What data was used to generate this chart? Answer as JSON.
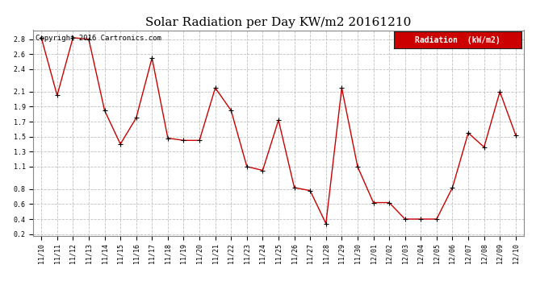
{
  "title": "Solar Radiation per Day KW/m2 20161210",
  "copyright_text": "Copyright 2016 Cartronics.com",
  "legend_label": "Radiation  (kW/m2)",
  "dates": [
    "11/10",
    "11/11",
    "11/12",
    "11/13",
    "11/14",
    "11/15",
    "11/16",
    "11/17",
    "11/18",
    "11/19",
    "11/20",
    "11/21",
    "11/22",
    "11/23",
    "11/24",
    "11/25",
    "11/26",
    "11/27",
    "11/28",
    "11/29",
    "11/30",
    "12/01",
    "12/02",
    "12/03",
    "12/04",
    "12/05",
    "12/06",
    "12/07",
    "12/08",
    "12/09",
    "12/10"
  ],
  "values": [
    2.82,
    2.05,
    2.82,
    2.8,
    1.85,
    1.4,
    1.75,
    2.55,
    1.48,
    1.45,
    1.45,
    2.15,
    1.85,
    1.1,
    1.05,
    1.72,
    0.82,
    0.78,
    0.34,
    2.15,
    1.1,
    0.62,
    0.62,
    0.4,
    0.4,
    0.4,
    0.82,
    1.55,
    1.36,
    2.1,
    1.52
  ],
  "line_color": "#cc0000",
  "marker_color": "#000000",
  "marker_style": "+",
  "grid_color": "#c0c0c0",
  "grid_linestyle": "--",
  "bg_color": "#ffffff",
  "ylim": [
    0.18,
    2.92
  ],
  "yticks": [
    0.2,
    0.4,
    0.6,
    0.8,
    1.1,
    1.3,
    1.5,
    1.7,
    1.9,
    2.1,
    2.4,
    2.6,
    2.8
  ],
  "legend_bg": "#cc0000",
  "legend_text_color": "#ffffff",
  "title_fontsize": 11,
  "copyright_fontsize": 6.5,
  "tick_fontsize": 6,
  "legend_fontsize": 7
}
